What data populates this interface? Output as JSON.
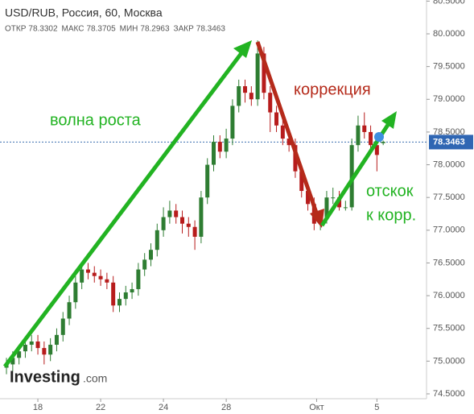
{
  "chart_data": {
    "type": "candlestick",
    "title": "USD/RUB, Россия, 60, Москва",
    "ohlc_header": [
      {
        "label": "ОТКР",
        "value": "78.3302"
      },
      {
        "label": "МАКС",
        "value": "78.3705"
      },
      {
        "label": "МИН",
        "value": "78.2963"
      },
      {
        "label": "ЗАКР",
        "value": "78.3463"
      }
    ],
    "last_price": 78.3463,
    "annotations": [
      "волна роста",
      "коррекция",
      "отскок",
      "к корр."
    ],
    "logo": {
      "name": "Investing",
      "suffix": ".com"
    },
    "open": [
      74.9,
      74.95,
      75.05,
      75.15,
      75.25,
      75.3,
      75.2,
      75.1,
      75.25,
      75.4,
      75.65,
      75.9,
      76.2,
      76.4,
      76.35,
      76.3,
      76.25,
      76.2,
      75.85,
      75.95,
      76.05,
      76.1,
      76.4,
      76.55,
      76.7,
      77.0,
      77.2,
      77.3,
      77.2,
      77.1,
      77.05,
      76.9,
      77.5,
      78.0,
      78.35,
      78.2,
      78.4,
      78.9,
      79.2,
      79.1,
      79.0,
      79.7,
      79.1,
      78.8,
      78.6,
      78.4,
      78.3,
      77.9,
      77.6,
      77.4,
      77.1,
      77.2,
      77.5,
      77.5,
      77.35,
      77.35,
      78.3,
      78.6,
      78.5,
      78.3,
      78.33
    ],
    "high": [
      75.05,
      75.15,
      75.25,
      75.35,
      75.4,
      75.4,
      75.3,
      75.35,
      75.5,
      75.75,
      76.0,
      76.3,
      76.5,
      76.5,
      76.45,
      76.4,
      76.35,
      76.3,
      76.05,
      76.15,
      76.2,
      76.5,
      76.65,
      76.8,
      77.1,
      77.35,
      77.45,
      77.4,
      77.3,
      77.2,
      77.15,
      77.6,
      78.1,
      78.45,
      78.45,
      78.55,
      79.0,
      79.3,
      79.3,
      79.2,
      79.9,
      79.8,
      79.2,
      78.9,
      78.7,
      78.5,
      78.4,
      78.0,
      77.7,
      77.5,
      77.3,
      77.6,
      77.65,
      77.6,
      77.45,
      78.4,
      78.75,
      78.8,
      78.6,
      78.4,
      78.37
    ],
    "low": [
      74.8,
      74.85,
      74.95,
      75.05,
      75.15,
      75.1,
      74.95,
      75.0,
      75.15,
      75.3,
      75.55,
      75.8,
      76.1,
      76.25,
      76.2,
      76.15,
      76.1,
      75.75,
      75.75,
      75.85,
      75.95,
      76.0,
      76.3,
      76.45,
      76.6,
      76.9,
      77.1,
      77.1,
      76.95,
      76.9,
      76.7,
      76.8,
      77.4,
      77.9,
      78.1,
      78.1,
      78.3,
      78.8,
      78.95,
      78.9,
      78.9,
      79.0,
      78.5,
      78.5,
      78.3,
      78.2,
      77.8,
      77.5,
      77.3,
      77.0,
      77.0,
      77.1,
      77.4,
      77.3,
      77.3,
      77.3,
      78.2,
      78.4,
      78.2,
      77.9,
      78.3
    ],
    "close": [
      74.95,
      75.05,
      75.15,
      75.25,
      75.3,
      75.2,
      75.1,
      75.25,
      75.4,
      75.65,
      75.9,
      76.2,
      76.4,
      76.35,
      76.3,
      76.25,
      76.2,
      75.85,
      75.95,
      76.05,
      76.1,
      76.4,
      76.55,
      76.7,
      77.0,
      77.2,
      77.3,
      77.2,
      77.1,
      77.05,
      76.9,
      77.5,
      78.0,
      78.35,
      78.2,
      78.4,
      78.9,
      79.2,
      79.1,
      79.0,
      79.7,
      79.1,
      78.8,
      78.6,
      78.4,
      78.3,
      77.9,
      77.6,
      77.4,
      77.1,
      77.2,
      77.5,
      77.5,
      77.35,
      77.35,
      78.3,
      78.6,
      78.5,
      78.3,
      78.15,
      78.35
    ],
    "up_color": "#2e7d32",
    "down_color": "#b71c1c",
    "xlim": [
      -1.03,
      66.9
    ],
    "xticks": [
      {
        "value": 5,
        "label": "18"
      },
      {
        "value": 15,
        "label": "22"
      },
      {
        "value": 25,
        "label": "24"
      },
      {
        "value": 35,
        "label": "28"
      },
      {
        "value": 49.4,
        "label": "Окт"
      },
      {
        "value": 59,
        "label": "5"
      }
    ],
    "ylim": [
      74.426,
      80.517
    ],
    "yticks": [
      {
        "value": 74.5,
        "label": "74.5000"
      },
      {
        "value": 75,
        "label": "75.0000"
      },
      {
        "value": 75.5,
        "label": "75.5000"
      },
      {
        "value": 76,
        "label": "76.0000"
      },
      {
        "value": 76.5,
        "label": "76.5000"
      },
      {
        "value": 77,
        "label": "77.0000"
      },
      {
        "value": 77.5,
        "label": "77.5000"
      },
      {
        "value": 78,
        "label": "78.0000"
      },
      {
        "value": 78.5,
        "label": "78.5000"
      },
      {
        "value": 79,
        "label": "79.0000"
      },
      {
        "value": 79.5,
        "label": "79.5000"
      },
      {
        "value": 80,
        "label": "80.0000"
      },
      {
        "value": 80.5,
        "label": "80.5000"
      }
    ]
  }
}
